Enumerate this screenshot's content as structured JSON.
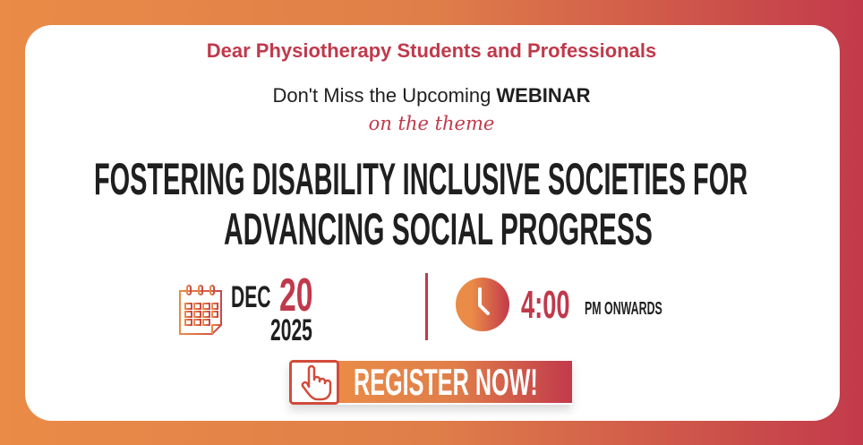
{
  "greeting": "Dear Physiotherapy Students and Professionals",
  "invite": {
    "prefix": "Don't Miss the Upcoming ",
    "emphasis": "WEBINAR"
  },
  "theme_label": "on the theme",
  "title": {
    "line1": "FOSTERING DISABILITY INCLUSIVE SOCIETIES FOR",
    "line2": "ADVANCING SOCIAL PROGRESS"
  },
  "date": {
    "month": "DEC",
    "day": "20",
    "year": "2025",
    "icon": "calendar-icon"
  },
  "time": {
    "value": "4:00",
    "suffix": "PM ONWARDS",
    "icon": "clock-icon"
  },
  "register": {
    "label": "REGISTER NOW!",
    "icon": "pointing-hand-icon"
  },
  "colors": {
    "accent_red": "#C0394B",
    "accent_orange": "#EA8B47",
    "text": "#1f1f1f"
  }
}
